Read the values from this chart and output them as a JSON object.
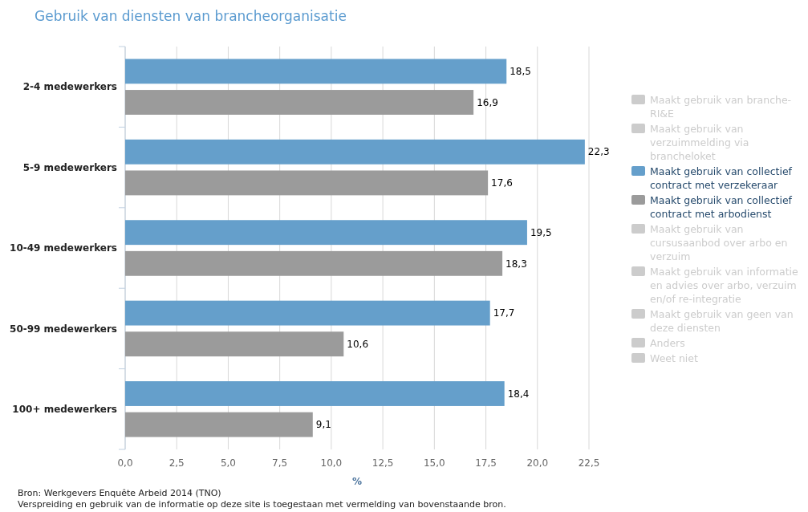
{
  "chart_data": {
    "type": "bar",
    "orientation": "horizontal",
    "title": "Gebruik van diensten van brancheorganisatie",
    "xlabel": "%",
    "categories": [
      "2-4 medewerkers",
      "5-9 medewerkers",
      "10-49 medewerkers",
      "50-99 medewerkers",
      "100+ medewerkers"
    ],
    "series": [
      {
        "name": "Maakt gebruik van branche-RI&E",
        "color": "#cccccc",
        "values": [
          null,
          null,
          null,
          null,
          null
        ]
      },
      {
        "name": "Maakt gebruik van verzuimmelding via brancheloket",
        "color": "#cccccc",
        "values": [
          null,
          null,
          null,
          null,
          null
        ]
      },
      {
        "name": "Maakt gebruik van collectief contract met verzekeraar",
        "color": "#659fcb",
        "values": [
          18.5,
          22.3,
          19.5,
          17.7,
          18.4
        ],
        "value_labels": [
          "18,5",
          "22,3",
          "19,5",
          "17,7",
          "18,4"
        ]
      },
      {
        "name": "Maakt gebruik van collectief contract met arbodienst",
        "color": "#9b9b9b",
        "values": [
          16.9,
          17.6,
          18.3,
          10.6,
          9.1
        ],
        "value_labels": [
          "16,9",
          "17,6",
          "18,3",
          "10,6",
          "9,1"
        ]
      },
      {
        "name": "Maakt gebruik van cursusaanbod over arbo en verzuim",
        "color": "#cccccc",
        "values": [
          null,
          null,
          null,
          null,
          null
        ]
      },
      {
        "name": "Maakt gebruik van informatie en advies over arbo, verzuim en/of re-integratie",
        "color": "#cccccc",
        "values": [
          null,
          null,
          null,
          null,
          null
        ]
      },
      {
        "name": "Maakt gebruik van geen van deze diensten",
        "color": "#cccccc",
        "values": [
          null,
          null,
          null,
          null,
          null
        ]
      },
      {
        "name": "Anders",
        "color": "#cccccc",
        "values": [
          null,
          null,
          null,
          null,
          null
        ]
      },
      {
        "name": "Weet niet",
        "color": "#cccccc",
        "values": [
          null,
          null,
          null,
          null,
          null
        ]
      }
    ],
    "xlim": [
      0,
      22.5
    ],
    "xticks": [
      {
        "value": 0,
        "label": "0,0"
      },
      {
        "value": 2.5,
        "label": "2,5"
      },
      {
        "value": 5,
        "label": "5,0"
      },
      {
        "value": 7.5,
        "label": "7,5"
      },
      {
        "value": 10,
        "label": "10,0"
      },
      {
        "value": 12.5,
        "label": "12,5"
      },
      {
        "value": 15,
        "label": "15,0"
      },
      {
        "value": 17.5,
        "label": "17,5"
      },
      {
        "value": 20,
        "label": "20,0"
      },
      {
        "value": 22.5,
        "label": "22,5"
      }
    ],
    "grid": "x",
    "legend": "right",
    "annotations": [
      "Bron: Werkgevers Enquête Arbeid 2014 (TNO)",
      "Verspreiding en gebruik van de informatie op deze site is toegestaan met vermelding van bovenstaande bron."
    ]
  }
}
